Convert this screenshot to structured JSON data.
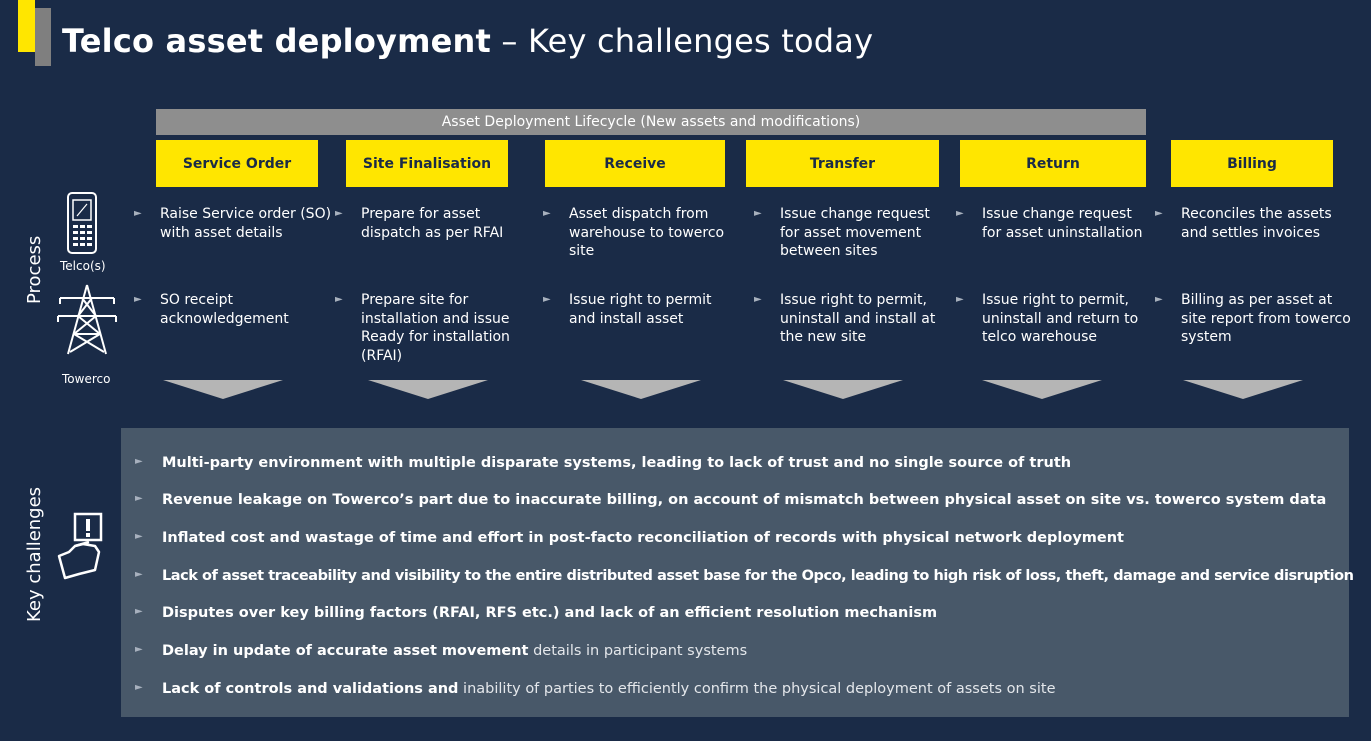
{
  "title": {
    "bold": "Telco asset deployment",
    "dash": " – ",
    "light": "Key challenges today"
  },
  "lifecycle_label": "Asset Deployment Lifecycle (New assets and modifications)",
  "stages": [
    "Service Order",
    "Site Finalisation",
    "Receive",
    "Transfer",
    "Return",
    "Billing"
  ],
  "side_labels": {
    "process": "Process",
    "challenges": "Key challenges"
  },
  "actors": {
    "telco": "Telco(s)",
    "towerco": "Towerco"
  },
  "bullet_glyph": "►",
  "telco_row": [
    "Raise Service order (SO) with asset details",
    "Prepare for asset dispatch as per RFAI",
    "Asset dispatch from warehouse to towerco site",
    "Issue change request for asset movement between sites",
    "Issue change request for asset uninstallation",
    "Reconciles the assets and settles invoices"
  ],
  "towerco_row": [
    "SO receipt acknowledgement",
    "Prepare site for installation and issue Ready for installation (RFAI)",
    "Issue right to permit and install asset",
    "Issue right to permit, uninstall and install at the new site",
    "Issue right to permit, uninstall and return to telco warehouse",
    "Billing as per asset at site report from towerco system"
  ],
  "challenges": [
    {
      "strong": "Multi-party environment with multiple disparate systems, leading to lack of trust and no single source of truth",
      "weak": ""
    },
    {
      "strong": "Revenue leakage on Towerco’s part due to inaccurate billing, on account of mismatch between physical asset on site vs. towerco system data",
      "weak": ""
    },
    {
      "strong": "Inflated cost and wastage of time and effort in post-facto reconciliation of records with physical network deployment",
      "weak": ""
    },
    {
      "strong": "Lack of asset traceability and visibility to the entire distributed asset base for the Opco, leading to high risk of loss, theft, damage and service disruption",
      "weak": ""
    },
    {
      "strong": "Disputes over key billing factors (RFAI, RFS etc.) and lack of an efficient resolution mechanism",
      "weak": ""
    },
    {
      "strong": "Delay in update of accurate asset movement",
      "weak": " details in participant systems"
    },
    {
      "strong": "Lack of controls and validations and",
      "weak": " inability of parties to efficiently confirm the physical deployment of assets on site"
    }
  ],
  "colors": {
    "background": "#1a2b47",
    "accent": "#ffe600",
    "panel": "#485869",
    "bar": "#8e8e8e"
  }
}
